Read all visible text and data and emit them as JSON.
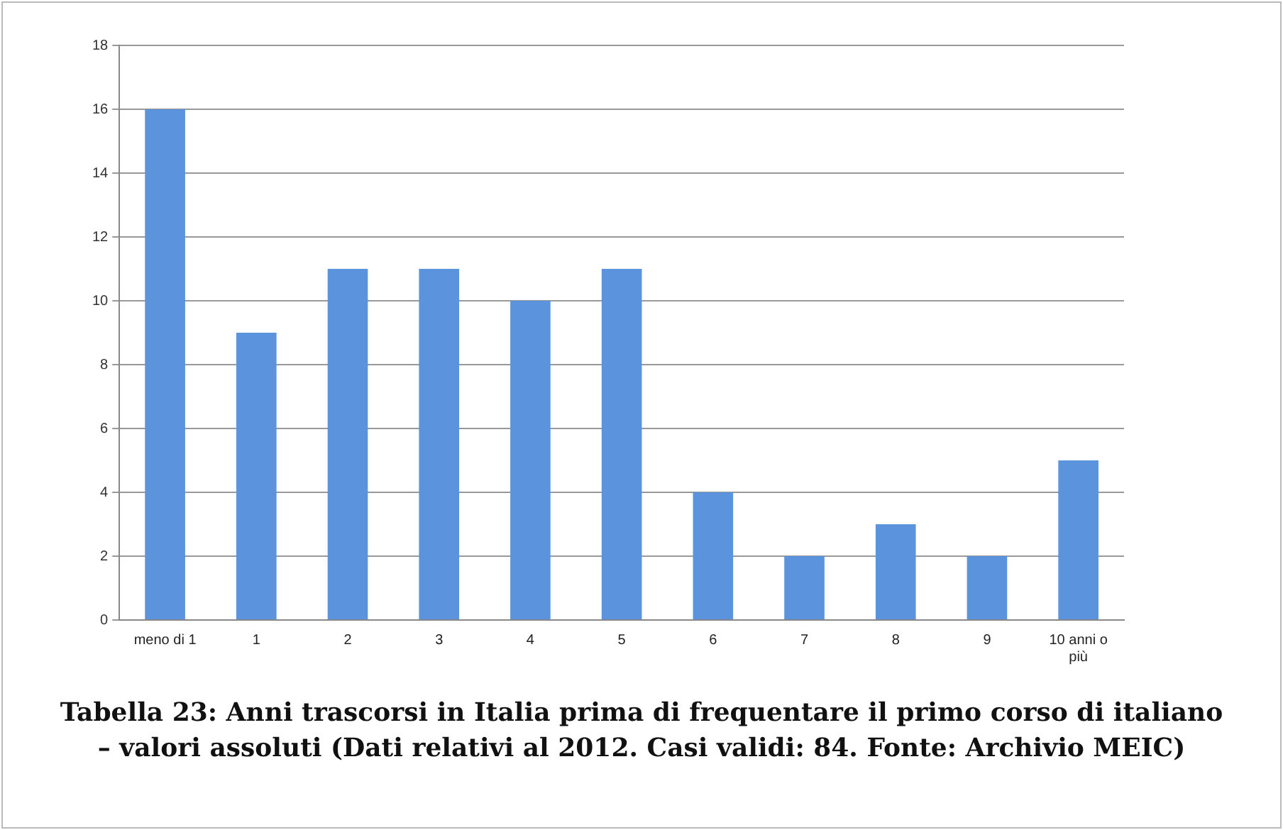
{
  "chart_data": {
    "type": "bar",
    "title": "Tabella 23: Anni trascorsi in Italia prima di frequentare il primo corso di italiano – valori assoluti (Dati relativi al 2012. Casi validi: 84. Fonte: Archivio MEIC)",
    "categories": [
      "meno di 1",
      "1",
      "2",
      "3",
      "4",
      "5",
      "6",
      "7",
      "8",
      "9",
      "10 anni o più"
    ],
    "values": [
      16,
      9,
      11,
      11,
      10,
      11,
      4,
      2,
      3,
      2,
      5
    ],
    "color": "#5b93dc",
    "ylim": [
      0,
      18
    ],
    "yticks": [
      0,
      2,
      4,
      6,
      8,
      10,
      12,
      14,
      16,
      18
    ],
    "grid": "y"
  }
}
